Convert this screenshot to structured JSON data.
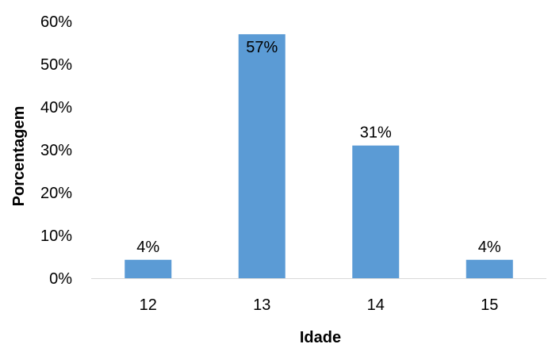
{
  "chart_data": {
    "type": "bar",
    "title": "",
    "xlabel": "Idade",
    "ylabel": "Porcentagem",
    "categories": [
      "12",
      "13",
      "14",
      "15"
    ],
    "values": [
      4.3,
      57,
      31,
      4.3
    ],
    "data_labels": [
      "4%",
      "57%",
      "31%",
      "4%"
    ],
    "ylim": [
      0,
      60
    ],
    "yticks": [
      0,
      10,
      20,
      30,
      40,
      50,
      60
    ],
    "ytick_labels": [
      "0%",
      "10%",
      "20%",
      "30%",
      "40%",
      "50%",
      "60%"
    ],
    "grid": false,
    "legend": "none",
    "colors": {
      "bar": "#5b9bd5",
      "axis": "#d9d9d9",
      "text": "#000000"
    }
  }
}
